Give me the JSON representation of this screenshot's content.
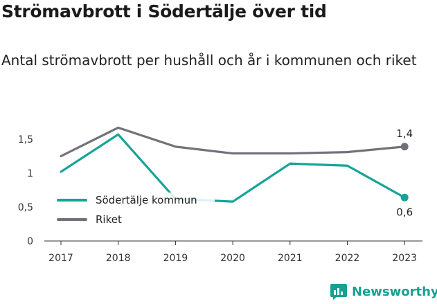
{
  "header": {
    "title": "Strömavbrott i Södertälje över tid",
    "subtitle": "Antal strömavbrott per hushåll och år i kommunen och riket"
  },
  "brand": {
    "name": "Newsworthy"
  },
  "chart_data": {
    "type": "line",
    "title": "Strömavbrott i Södertälje över tid",
    "subtitle": "Antal strömavbrott per hushåll och år i kommunen och riket",
    "x": [
      "2017",
      "2018",
      "2019",
      "2020",
      "2021",
      "2022",
      "2023"
    ],
    "ylim": [
      0,
      1.5
    ],
    "yticks": [
      0,
      0.5,
      1,
      1.5
    ],
    "ytick_labels": [
      "0",
      "0,5",
      "1",
      "1,5"
    ],
    "grid": false,
    "legend_position": "bottom-left",
    "series": [
      {
        "name": "Södertälje kommun",
        "color": "#17a398",
        "values": [
          1.02,
          1.57,
          0.62,
          0.58,
          1.14,
          1.11,
          0.64
        ],
        "end_label": "0,6"
      },
      {
        "name": "Riket",
        "color": "#727179",
        "values": [
          1.25,
          1.67,
          1.39,
          1.29,
          1.29,
          1.31,
          1.39
        ],
        "end_label": "1,4"
      }
    ]
  }
}
